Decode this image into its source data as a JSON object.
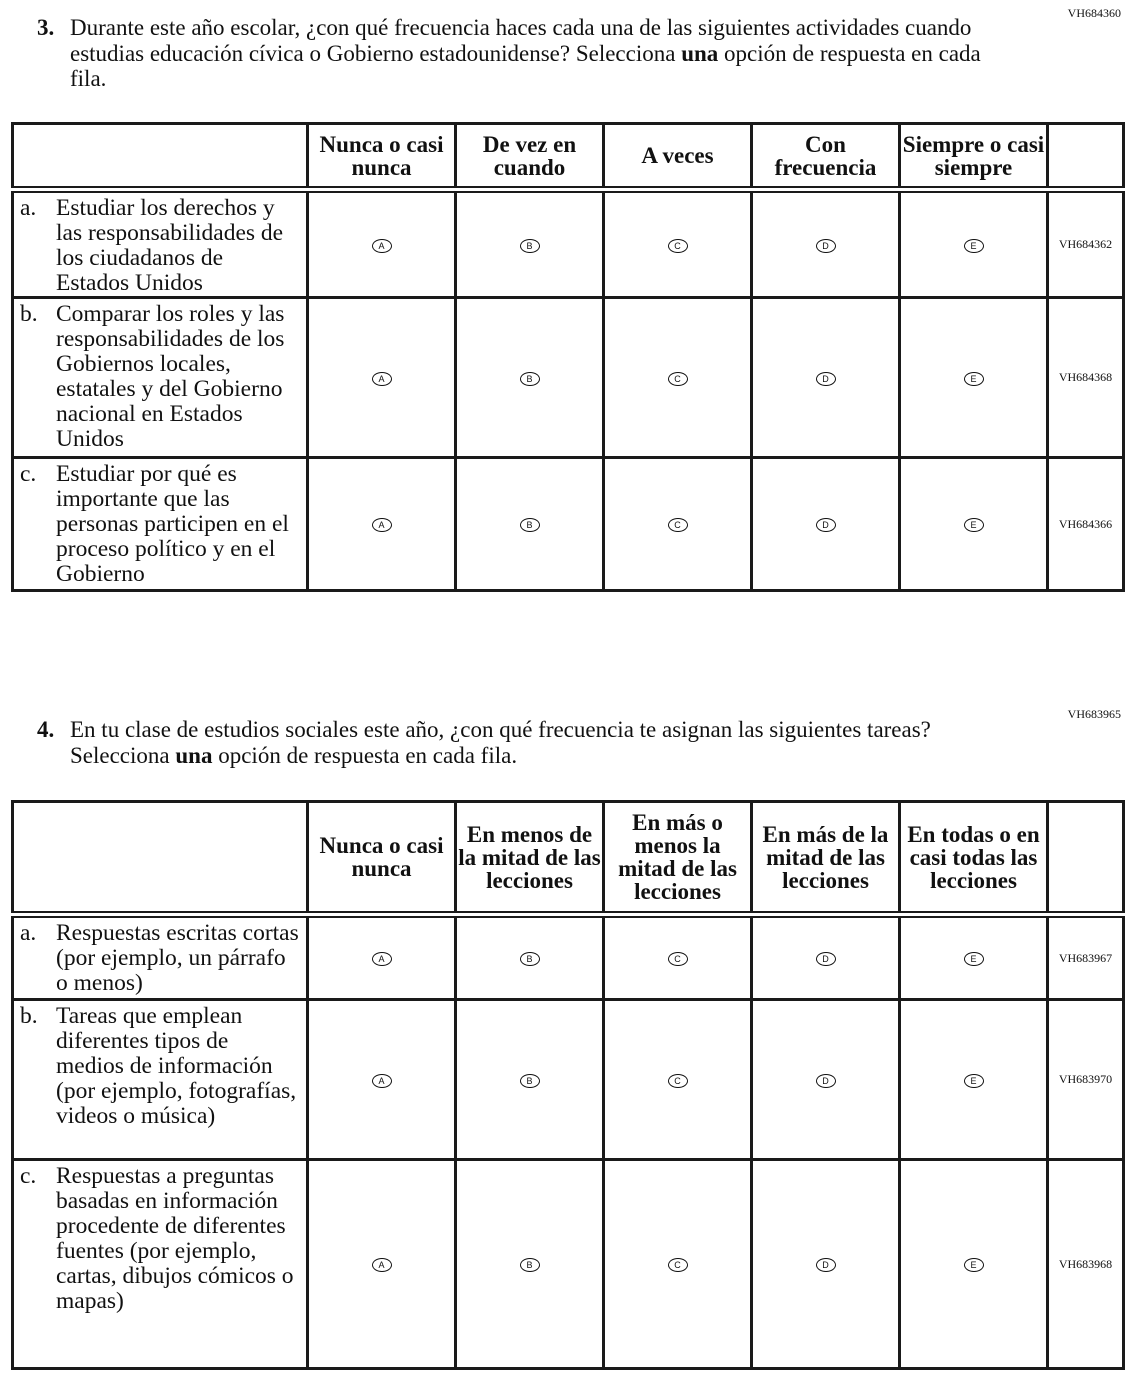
{
  "questions": [
    {
      "id": "VH684360",
      "number": "3.",
      "text_before": "Durante este año escolar, ¿con qué frecuencia haces cada una de las siguientes actividades cuando estudias educación cívica o Gobierno estadounidense? Selecciona ",
      "text_bold": "una",
      "text_after": " opción de respuesta en cada fila.",
      "columns": [
        "Nunca o casi nunca",
        "De vez en cuando",
        "A veces",
        "Con frecuencia",
        "Siempre o casi siempre"
      ],
      "options": [
        "A",
        "B",
        "C",
        "D",
        "E"
      ],
      "rows": [
        {
          "letter": "a.",
          "text": "Estudiar los derechos y las responsabilidades de los ciudadanos de Estados Unidos",
          "code": "VH684362"
        },
        {
          "letter": "b.",
          "text": "Comparar los roles y las responsabilidades de los Gobiernos locales, estatales y del Gobierno nacional en Estados Unidos",
          "code": "VH684368"
        },
        {
          "letter": "c.",
          "text": "Estudiar por qué es importante que las personas participen en el proceso político y en el Gobierno",
          "code": "VH684366"
        }
      ]
    },
    {
      "id": "VH683965",
      "number": "4.",
      "text_before": "En tu clase de estudios sociales este año, ¿con qué frecuencia te asignan las siguientes tareas? Selecciona ",
      "text_bold": "una",
      "text_after": " opción de respuesta en cada fila.",
      "columns": [
        "Nunca o casi nunca",
        "En menos de la mitad de las lecciones",
        "En más o menos la mitad de las lecciones",
        "En más de la mitad de las lecciones",
        "En todas o en casi todas las lecciones"
      ],
      "options": [
        "A",
        "B",
        "C",
        "D",
        "E"
      ],
      "rows": [
        {
          "letter": "a.",
          "text": "Respuestas escritas cortas (por ejemplo, un párrafo o menos)",
          "code": "VH683967"
        },
        {
          "letter": "b.",
          "text": "Tareas que emplean diferentes tipos de medios de información (por ejemplo, fotografías, videos o música)",
          "code": "VH683970"
        },
        {
          "letter": "c.",
          "text": "Respuestas a preguntas basadas en información procedente de diferentes fuentes (por ejemplo, cartas, dibujos cómicos o mapas)",
          "code": "VH683968"
        }
      ]
    }
  ]
}
